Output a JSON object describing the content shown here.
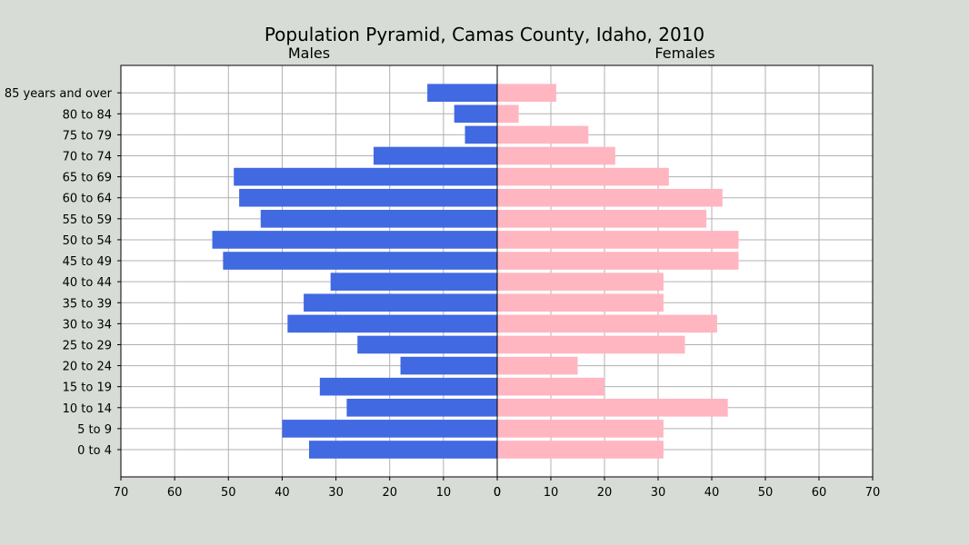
{
  "chart_data": {
    "type": "bar",
    "orientation": "horizontal",
    "title": "Population Pyramid, Camas County, Idaho, 2010",
    "categories": [
      "0 to 4",
      "5 to 9",
      "10 to 14",
      "15 to 19",
      "20 to 24",
      "25 to 29",
      "30 to 34",
      "35 to 39",
      "40 to 44",
      "45 to 49",
      "50 to 54",
      "55 to 59",
      "60 to 64",
      "65 to 69",
      "70 to 74",
      "75 to 79",
      "80 to 84",
      "85 years and over"
    ],
    "series": [
      {
        "name": "Males",
        "color": "#4169e1",
        "values": [
          35,
          40,
          28,
          33,
          18,
          26,
          39,
          36,
          31,
          51,
          53,
          44,
          48,
          49,
          23,
          6,
          8,
          13
        ]
      },
      {
        "name": "Females",
        "color": "#ffb6c1",
        "values": [
          31,
          31,
          43,
          20,
          15,
          35,
          41,
          31,
          31,
          45,
          45,
          39,
          42,
          32,
          22,
          17,
          4,
          11
        ]
      }
    ],
    "xlim": [
      0,
      70
    ],
    "xticks": [
      0,
      10,
      20,
      30,
      40,
      50,
      60,
      70
    ],
    "grid": true,
    "background_color": "#d7dcd6",
    "plot_background_color": "#ffffff",
    "grid_color": "#b0b0b0"
  }
}
